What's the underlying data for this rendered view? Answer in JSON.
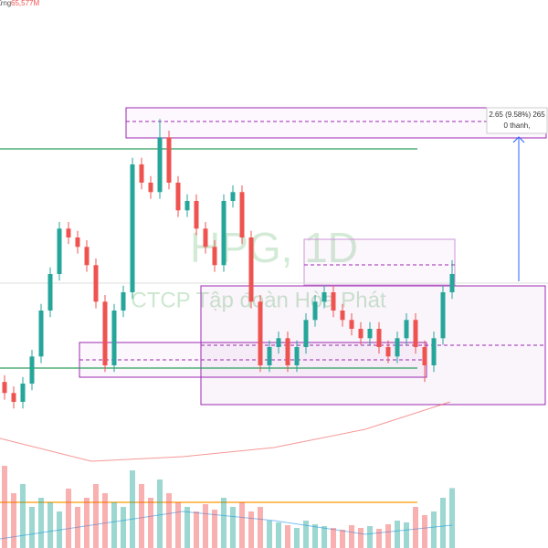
{
  "chart_data": {
    "type": "candlestick",
    "symbol_watermark": "HPG, 1D",
    "name_watermark": "CTCP Tập đoàn Hòa Phát",
    "volume_caption": "ứng",
    "volume_value_label": "65,577M",
    "measure_text": "2.65 (9.58%) 265",
    "measure_subtext": "0 thanh,",
    "up_color": "#26a69a",
    "down_color": "#ef5350",
    "ylim": [
      22.9,
      32.8
    ],
    "vlim": [
      0,
      120000
    ],
    "open": [
      25.9,
      25.7,
      25.54,
      25.87,
      26.36,
      27.19,
      27.85,
      28.67,
      28.51,
      28.34,
      28.01,
      27.35,
      26.2,
      27.19,
      27.52,
      29.83,
      29.5,
      29.33,
      30.32,
      29.5,
      29.0,
      29.17,
      28.67,
      28.34,
      28.01,
      29.17,
      29.33,
      28.51,
      27.35,
      26.2,
      26.53,
      26.69,
      26.2,
      26.53,
      27.02,
      27.35,
      27.52,
      27.19,
      27.02,
      26.86,
      26.69,
      26.86,
      26.53,
      26.36,
      26.69,
      27.02,
      26.53,
      26.2,
      26.69,
      27.52
    ],
    "high": [
      26.02,
      25.82,
      25.99,
      26.48,
      27.31,
      27.97,
      28.79,
      28.79,
      28.63,
      28.46,
      28.13,
      27.47,
      27.31,
      27.64,
      29.95,
      29.95,
      29.62,
      30.65,
      30.44,
      29.62,
      29.29,
      29.29,
      28.79,
      28.46,
      29.29,
      29.45,
      29.45,
      28.63,
      27.47,
      26.65,
      26.81,
      26.81,
      26.65,
      27.14,
      27.47,
      27.64,
      27.64,
      27.31,
      27.14,
      26.98,
      26.98,
      26.98,
      26.65,
      26.81,
      27.14,
      27.14,
      26.65,
      26.81,
      27.64,
      28.1
    ],
    "low": [
      25.58,
      25.42,
      25.42,
      25.75,
      26.24,
      27.07,
      27.73,
      28.39,
      28.22,
      27.89,
      27.23,
      26.08,
      26.08,
      27.07,
      27.4,
      29.38,
      29.21,
      29.21,
      29.38,
      28.88,
      28.88,
      28.55,
      28.22,
      27.89,
      27.89,
      29.05,
      28.39,
      27.23,
      26.08,
      26.08,
      26.41,
      26.08,
      26.08,
      26.41,
      26.9,
      27.23,
      27.07,
      26.9,
      26.74,
      26.57,
      26.57,
      26.41,
      26.24,
      26.24,
      26.57,
      26.41,
      25.9,
      26.08,
      26.57,
      27.4
    ],
    "close": [
      25.7,
      25.54,
      25.87,
      26.36,
      27.19,
      27.85,
      28.67,
      28.51,
      28.34,
      28.01,
      27.35,
      26.2,
      27.19,
      27.52,
      29.83,
      29.5,
      29.33,
      30.32,
      29.5,
      29.0,
      29.17,
      28.67,
      28.34,
      28.01,
      29.17,
      29.33,
      28.51,
      27.35,
      26.2,
      26.53,
      26.69,
      26.2,
      26.53,
      27.02,
      27.35,
      27.52,
      27.19,
      27.02,
      26.86,
      26.69,
      26.86,
      26.53,
      26.36,
      26.69,
      27.02,
      26.53,
      26.2,
      26.69,
      27.52,
      27.85
    ],
    "volumes": [
      90000,
      60000,
      70000,
      45000,
      55000,
      50000,
      40000,
      65000,
      45000,
      55000,
      70000,
      60000,
      50000,
      45000,
      85000,
      70000,
      55000,
      75000,
      60000,
      50000,
      45000,
      40000,
      48000,
      42000,
      55000,
      45000,
      50000,
      40000,
      45000,
      30000,
      28000,
      25000,
      22000,
      30000,
      26000,
      24000,
      22000,
      20000,
      25000,
      22000,
      24000,
      21000,
      26000,
      30000,
      28000,
      45000,
      36000,
      40000,
      55000,
      65577
    ],
    "levels": [
      30.11,
      26.15
    ],
    "volume_level": 50000
  }
}
